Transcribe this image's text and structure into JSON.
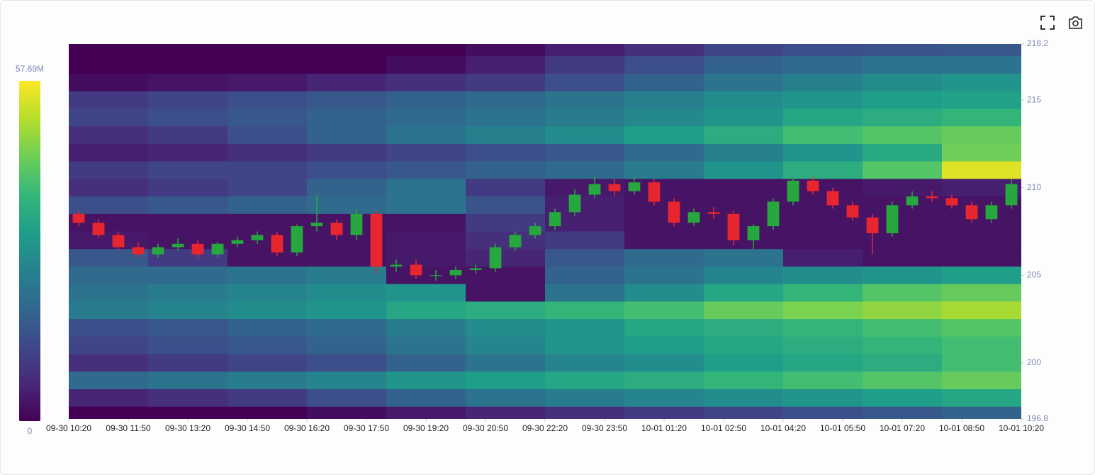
{
  "chart_data": {
    "type": "heatmap-candlestick",
    "xlim": [
      "09-30 10:20",
      "10-01 10:20"
    ],
    "xticks": [
      "09-30 10:20",
      "09-30 11:50",
      "09-30 13:20",
      "09-30 14:50",
      "09-30 16:20",
      "09-30 17:50",
      "09-30 19:20",
      "09-30 20:50",
      "09-30 22:20",
      "09-30 23:50",
      "10-01 01:20",
      "10-01 02:50",
      "10-01 04:20",
      "10-01 05:50",
      "10-01 07:20",
      "10-01 08:50",
      "10-01 10:20"
    ],
    "ylim": [
      196.8,
      218.2
    ],
    "yticks": [
      196.8,
      200,
      205,
      210,
      215,
      218.2
    ],
    "zlim": [
      0,
      57.69
    ],
    "zticks": [
      0,
      {
        "value": 57.69,
        "label": "57.69M"
      }
    ],
    "up_color": "#26a83e",
    "down_color": "#e8262f",
    "heatmap": {
      "times": [
        "09-30 10:20",
        "09-30 12:20",
        "09-30 14:20",
        "09-30 16:20",
        "09-30 18:20",
        "09-30 20:20",
        "09-30 22:20",
        "10-01 00:20",
        "10-01 02:20",
        "10-01 04:20",
        "10-01 06:20",
        "10-01 08:20"
      ],
      "prices": [
        218,
        217,
        216,
        215,
        214,
        213,
        212,
        211,
        210,
        209,
        208,
        207,
        206,
        205,
        204,
        203,
        202,
        201,
        200,
        199,
        198,
        197
      ],
      "values": [
        [
          0,
          0,
          0,
          0,
          0,
          2,
          5,
          8,
          12,
          14,
          15,
          16
        ],
        [
          0,
          0,
          0,
          0,
          2,
          5,
          10,
          14,
          18,
          20,
          22,
          22
        ],
        [
          2,
          3,
          4,
          6,
          8,
          10,
          14,
          18,
          22,
          25,
          28,
          30
        ],
        [
          10,
          12,
          14,
          16,
          18,
          20,
          22,
          25,
          28,
          30,
          32,
          33
        ],
        [
          12,
          14,
          16,
          18,
          20,
          22,
          24,
          27,
          30,
          34,
          36,
          38
        ],
        [
          8,
          10,
          14,
          18,
          22,
          25,
          28,
          32,
          36,
          40,
          42,
          44
        ],
        [
          5,
          6,
          8,
          10,
          12,
          14,
          16,
          20,
          25,
          30,
          35,
          45
        ],
        [
          10,
          12,
          12,
          14,
          16,
          18,
          20,
          24,
          30,
          36,
          42,
          55
        ],
        [
          8,
          10,
          12,
          18,
          22,
          10,
          4,
          3,
          3,
          3,
          4,
          5
        ],
        [
          14,
          16,
          18,
          20,
          22,
          15,
          5,
          3,
          3,
          3,
          3,
          3
        ],
        [
          3,
          3,
          3,
          3,
          3,
          10,
          5,
          3,
          3,
          3,
          3,
          3
        ],
        [
          4,
          3,
          3,
          3,
          4,
          8,
          10,
          3,
          3,
          3,
          3,
          3
        ],
        [
          16,
          10,
          3,
          3,
          4,
          6,
          16,
          20,
          22,
          5,
          3,
          3
        ],
        [
          20,
          20,
          22,
          24,
          3,
          3,
          18,
          22,
          26,
          28,
          30,
          32
        ],
        [
          22,
          24,
          26,
          28,
          30,
          3,
          22,
          28,
          34,
          38,
          42,
          44
        ],
        [
          24,
          26,
          28,
          30,
          34,
          36,
          38,
          40,
          44,
          46,
          48,
          50
        ],
        [
          14,
          16,
          18,
          20,
          24,
          28,
          30,
          34,
          36,
          38,
          40,
          42
        ],
        [
          12,
          14,
          16,
          18,
          22,
          26,
          30,
          32,
          34,
          36,
          38,
          40
        ],
        [
          8,
          10,
          12,
          14,
          18,
          22,
          26,
          28,
          32,
          34,
          36,
          40
        ],
        [
          20,
          22,
          24,
          26,
          30,
          32,
          34,
          36,
          38,
          40,
          42,
          44
        ],
        [
          6,
          8,
          10,
          14,
          18,
          22,
          24,
          26,
          28,
          30,
          32,
          34
        ],
        [
          0,
          0,
          0,
          2,
          4,
          6,
          8,
          10,
          12,
          14,
          16,
          18
        ]
      ]
    },
    "candles": {
      "x": [
        "09-30 10:20",
        "09-30 10:50",
        "09-30 11:20",
        "09-30 11:50",
        "09-30 12:20",
        "09-30 12:50",
        "09-30 13:20",
        "09-30 13:50",
        "09-30 14:20",
        "09-30 14:50",
        "09-30 15:20",
        "09-30 15:50",
        "09-30 16:20",
        "09-30 16:50",
        "09-30 17:20",
        "09-30 17:50",
        "09-30 18:20",
        "09-30 18:50",
        "09-30 19:20",
        "09-30 19:50",
        "09-30 20:20",
        "09-30 20:50",
        "09-30 21:20",
        "09-30 21:50",
        "09-30 22:20",
        "09-30 22:50",
        "09-30 23:20",
        "09-30 23:50",
        "10-01 00:20",
        "10-01 00:50",
        "10-01 01:20",
        "10-01 01:50",
        "10-01 02:20",
        "10-01 02:50",
        "10-01 03:20",
        "10-01 03:50",
        "10-01 04:20",
        "10-01 04:50",
        "10-01 05:20",
        "10-01 05:50",
        "10-01 06:20",
        "10-01 06:50",
        "10-01 07:20",
        "10-01 07:50",
        "10-01 08:20",
        "10-01 08:50",
        "10-01 09:20",
        "10-01 09:50"
      ],
      "open": [
        208.5,
        208.0,
        207.3,
        206.6,
        206.2,
        206.6,
        206.8,
        206.2,
        206.8,
        207.0,
        207.3,
        206.3,
        207.8,
        208.0,
        207.3,
        208.5,
        205.5,
        205.6,
        205.0,
        205.0,
        205.3,
        205.4,
        206.6,
        207.3,
        207.8,
        208.6,
        209.6,
        210.2,
        209.8,
        210.3,
        209.2,
        208.0,
        208.6,
        208.5,
        207.0,
        207.8,
        209.2,
        210.4,
        209.8,
        209.0,
        208.3,
        207.4,
        209.0,
        209.5,
        209.4,
        209.0,
        208.2,
        209.0
      ],
      "high": [
        208.7,
        208.2,
        207.5,
        206.9,
        206.8,
        207.1,
        207.0,
        206.9,
        207.2,
        207.5,
        207.5,
        207.9,
        209.6,
        208.2,
        208.8,
        208.7,
        205.9,
        205.9,
        205.3,
        205.5,
        205.6,
        206.8,
        207.5,
        208.0,
        208.8,
        209.9,
        210.6,
        210.5,
        210.6,
        210.5,
        209.4,
        208.8,
        208.9,
        208.7,
        207.9,
        209.4,
        210.6,
        210.6,
        210.0,
        209.2,
        208.5,
        209.2,
        209.8,
        209.8,
        209.6,
        209.2,
        209.2,
        210.5
      ],
      "low": [
        207.8,
        207.1,
        206.4,
        206.0,
        206.0,
        206.4,
        206.0,
        206.0,
        206.6,
        206.8,
        206.1,
        206.1,
        207.5,
        207.0,
        207.0,
        205.1,
        205.2,
        204.8,
        204.7,
        204.8,
        205.1,
        205.2,
        206.4,
        207.1,
        207.6,
        208.4,
        209.4,
        209.5,
        209.6,
        209.0,
        207.8,
        207.8,
        208.2,
        206.7,
        206.5,
        207.6,
        209.0,
        209.6,
        208.8,
        208.1,
        206.2,
        207.2,
        208.8,
        209.2,
        208.8,
        208.0,
        208.0,
        208.8
      ],
      "close": [
        208.0,
        207.3,
        206.6,
        206.2,
        206.6,
        206.8,
        206.2,
        206.8,
        207.0,
        207.3,
        206.3,
        207.8,
        208.0,
        207.3,
        208.5,
        205.5,
        205.6,
        205.0,
        205.0,
        205.3,
        205.4,
        206.6,
        207.3,
        207.8,
        208.6,
        209.6,
        210.2,
        209.8,
        210.3,
        209.2,
        208.0,
        208.6,
        208.5,
        207.0,
        207.8,
        209.2,
        210.4,
        209.8,
        209.0,
        208.3,
        207.4,
        209.0,
        209.5,
        209.4,
        209.0,
        208.2,
        209.0,
        210.2
      ]
    }
  }
}
